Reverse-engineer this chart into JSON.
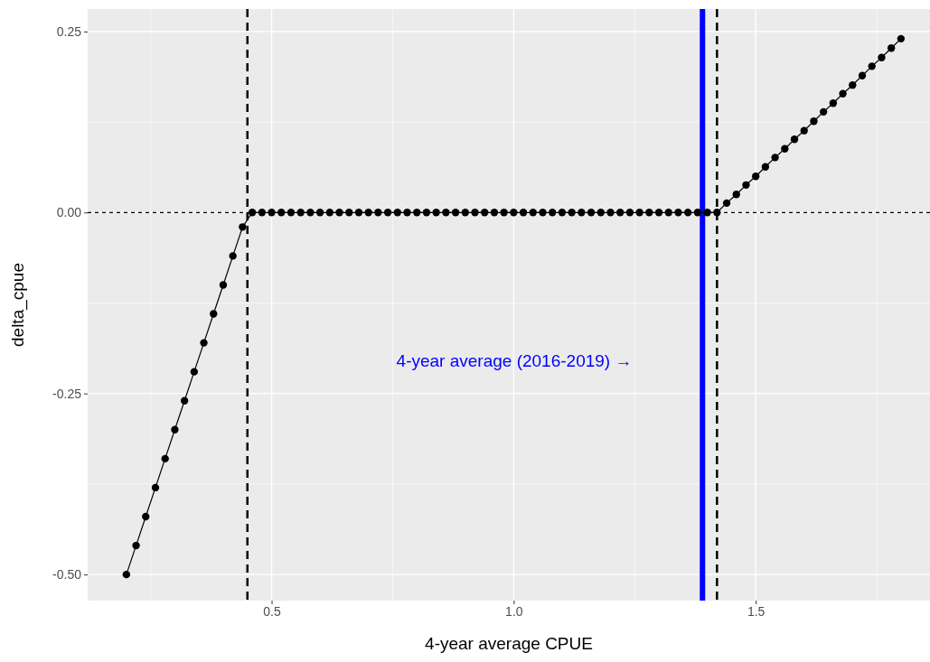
{
  "chart_data": {
    "type": "line",
    "xlabel": "4-year average CPUE",
    "ylabel": "delta_cpue",
    "x": [
      0.2,
      0.22,
      0.24,
      0.26,
      0.28,
      0.3,
      0.32,
      0.34,
      0.36,
      0.38,
      0.4,
      0.42,
      0.44,
      0.46,
      0.48,
      0.5,
      0.52,
      0.54,
      0.56,
      0.58,
      0.6,
      0.62,
      0.64,
      0.66,
      0.68,
      0.7,
      0.72,
      0.74,
      0.76,
      0.78,
      0.8,
      0.82,
      0.84,
      0.86,
      0.88,
      0.9,
      0.92,
      0.94,
      0.96,
      0.98,
      1.0,
      1.02,
      1.04,
      1.06,
      1.08,
      1.1,
      1.12,
      1.14,
      1.16,
      1.18,
      1.2,
      1.22,
      1.24,
      1.26,
      1.28,
      1.3,
      1.32,
      1.34,
      1.36,
      1.38,
      1.4,
      1.42,
      1.44,
      1.46,
      1.48,
      1.5,
      1.52,
      1.54,
      1.56,
      1.58,
      1.6,
      1.62,
      1.64,
      1.66,
      1.68,
      1.7,
      1.72,
      1.74,
      1.76,
      1.78,
      1.8
    ],
    "series": [
      {
        "color": "#000000",
        "values": [
          -0.5,
          -0.46,
          -0.42,
          -0.38,
          -0.34,
          -0.3,
          -0.26,
          -0.22,
          -0.18,
          -0.14,
          -0.1,
          -0.06,
          -0.02,
          0,
          0,
          0,
          0,
          0,
          0,
          0,
          0,
          0,
          0,
          0,
          0,
          0,
          0,
          0,
          0,
          0,
          0,
          0,
          0,
          0,
          0,
          0,
          0,
          0,
          0,
          0,
          0,
          0,
          0,
          0,
          0,
          0,
          0,
          0,
          0,
          0,
          0,
          0,
          0,
          0,
          0,
          0,
          0,
          0,
          0,
          0,
          0,
          0,
          0.013,
          0.025,
          0.038,
          0.05,
          0.063,
          0.076,
          0.088,
          0.101,
          0.113,
          0.126,
          0.139,
          0.151,
          0.164,
          0.176,
          0.189,
          0.202,
          0.214,
          0.227,
          0.24
        ]
      }
    ],
    "xlim": [
      0.12,
      1.86
    ],
    "ylim": [
      -0.536,
      0.281
    ],
    "xticks": [
      {
        "value": 0.25,
        "label": null
      },
      0.5,
      {
        "value": 0.75,
        "label": null
      },
      {
        "value": 1.0,
        "label": "1.0"
      },
      {
        "value": 1.25,
        "label": null
      },
      1.5,
      {
        "value": 1.75,
        "label": null
      }
    ],
    "yticks": [
      {
        "value": -0.5,
        "label": "-0.50"
      },
      {
        "value": -0.375,
        "label": null
      },
      {
        "value": -0.25,
        "label": "-0.25"
      },
      {
        "value": -0.125,
        "label": null
      },
      {
        "value": 0,
        "label": "0.00"
      },
      {
        "value": 0.125,
        "label": null
      },
      0.25
    ],
    "grid": true,
    "marker": "circle",
    "line_style": "solid",
    "ref_lines": [
      {
        "axis": "x",
        "value": 0.45,
        "color": "#000000",
        "line_style": "dashed"
      },
      {
        "axis": "x",
        "value": 1.42,
        "color": "#000000",
        "line_style": "dashed"
      },
      {
        "axis": "y",
        "value": 0,
        "color": "#000000",
        "line_style": "dotted"
      },
      {
        "axis": "x",
        "value": 1.39,
        "color": "#0000ff",
        "line_style": "solid"
      }
    ],
    "annotations": [
      "4-year average (2016-2019) →"
    ]
  }
}
